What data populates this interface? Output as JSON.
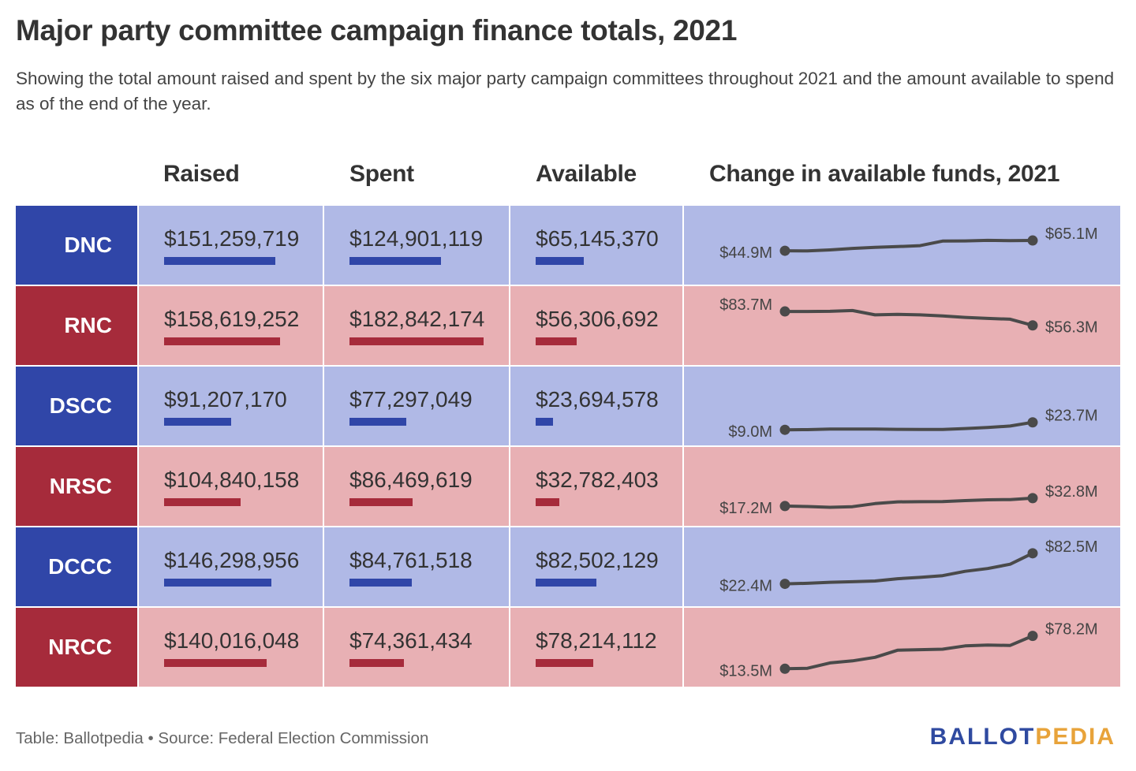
{
  "title": "Major party committee campaign finance totals, 2021",
  "subtitle": "Showing the total amount raised and spent by the six major party campaign committees throughout 2021 and the amount available to spend as of the end of the year.",
  "columns": {
    "raised": "Raised",
    "spent": "Spent",
    "available": "Available",
    "change": "Change in available funds, 2021"
  },
  "colors": {
    "dem_dark": "#3046a8",
    "dem_light": "#b0b9e6",
    "rep_dark": "#a62b3b",
    "rep_light": "#e8b0b4",
    "line": "#4a4a4a"
  },
  "chart_data": {
    "type": "table",
    "bar_max": 182842174,
    "rows": [
      {
        "name": "DNC",
        "party": "dem",
        "raised": 151259719,
        "raised_label": "$151,259,719",
        "spent": 124901119,
        "spent_label": "$124,901,119",
        "available": 65145370,
        "available_label": "$65,145,370",
        "start_label": "$44.9M",
        "end_label": "$65.1M",
        "trend": [
          44.9,
          44.5,
          46.5,
          49.5,
          51.5,
          53.0,
          55.0,
          64.0,
          64.2,
          65.3,
          64.8,
          65.1
        ]
      },
      {
        "name": "RNC",
        "party": "rep",
        "raised": 158619252,
        "raised_label": "$158,619,252",
        "spent": 182842174,
        "spent_label": "$182,842,174",
        "available": 56306692,
        "available_label": "$56,306,692",
        "start_label": "$83.7M",
        "end_label": "$56.3M",
        "trend": [
          83.7,
          83.7,
          84.0,
          85.5,
          77.0,
          78.0,
          77.0,
          75.0,
          72.0,
          70.0,
          68.5,
          56.3
        ]
      },
      {
        "name": "DSCC",
        "party": "dem",
        "raised": 91207170,
        "raised_label": "$91,207,170",
        "spent": 77297049,
        "spent_label": "$77,297,049",
        "available": 23694578,
        "available_label": "$23,694,578",
        "start_label": "$9.0M",
        "end_label": "$23.7M",
        "trend": [
          9.0,
          9.3,
          10.5,
          10.4,
          10.4,
          10.0,
          9.8,
          9.8,
          11.5,
          13.5,
          16.5,
          23.7
        ]
      },
      {
        "name": "NRSC",
        "party": "rep",
        "raised": 104840158,
        "raised_label": "$104,840,158",
        "spent": 86469619,
        "spent_label": "$86,469,619",
        "available": 32782403,
        "available_label": "$32,782,403",
        "start_label": "$17.2M",
        "end_label": "$32.8M",
        "trend": [
          17.2,
          16.3,
          14.8,
          16.0,
          22.0,
          25.5,
          25.7,
          26.0,
          28.0,
          29.5,
          30.0,
          32.8
        ]
      },
      {
        "name": "DCCC",
        "party": "dem",
        "raised": 146298956,
        "raised_label": "$146,298,956",
        "spent": 84761518,
        "spent_label": "$84,761,518",
        "available": 82502129,
        "available_label": "$82,502,129",
        "start_label": "$22.4M",
        "end_label": "$82.5M",
        "trend": [
          22.4,
          23.5,
          25.5,
          26.5,
          28.0,
          32.5,
          35.0,
          38.5,
          47.0,
          52.5,
          61.0,
          82.5
        ]
      },
      {
        "name": "NRCC",
        "party": "rep",
        "raised": 140016048,
        "raised_label": "$140,016,048",
        "spent": 74361434,
        "spent_label": "$74,361,434",
        "available": 78214112,
        "available_label": "$78,214,112",
        "start_label": "$13.5M",
        "end_label": "$78.2M",
        "trend": [
          13.5,
          14.5,
          25.0,
          29.0,
          36.0,
          50.0,
          51.0,
          52.0,
          58.5,
          60.0,
          59.5,
          78.2
        ]
      }
    ]
  },
  "footer": {
    "source": "Table: Ballotpedia • Source: Federal Election Commission",
    "logo_part1": "BALLOT",
    "logo_part2": "PEDIA"
  }
}
